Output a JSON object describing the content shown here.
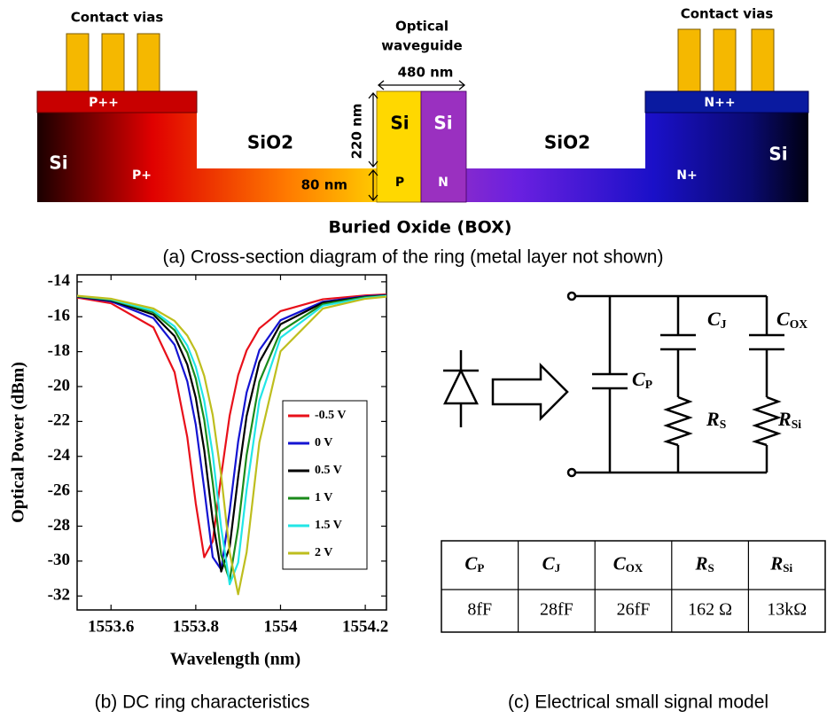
{
  "figure_a": {
    "contact_vias_left": "Contact vias",
    "contact_vias_right": "Contact vias",
    "waveguide_label": [
      "Optical",
      "waveguide"
    ],
    "width": "480 nm",
    "height": "220 nm",
    "slab": "80 nm",
    "sio2_left": "SiO2",
    "sio2_right": "SiO2",
    "si_left": "Si",
    "si_p": "Si",
    "si_n": "Si",
    "si_right": "Si",
    "p_plus_plus": "P++",
    "n_plus_plus": "N++",
    "p_plus": "P+",
    "n_plus": "N+",
    "p": "P",
    "n": "N",
    "box": "Buried Oxide (BOX)",
    "caption": "(a) Cross-section diagram of the ring (metal layer not shown)"
  },
  "chart_data": {
    "type": "line",
    "x_label": "Wavelength (nm)",
    "y_label": "Optical Power (dBm)",
    "x": [
      1553.52,
      1553.6,
      1553.7,
      1553.75,
      1553.78,
      1553.8,
      1553.82,
      1553.84,
      1553.86,
      1553.88,
      1553.9,
      1553.92,
      1553.95,
      1554.0,
      1554.1,
      1554.2,
      1554.25
    ],
    "series": [
      {
        "name": "-0.5 V",
        "color": "#e8101a",
        "values": [
          -14.9,
          -15.23,
          -16.61,
          -19.18,
          -22.9,
          -26.7,
          -29.78,
          -28.87,
          -25.1,
          -21.66,
          -19.35,
          -17.93,
          -16.67,
          -15.68,
          -15.0,
          -14.78,
          -14.72
        ]
      },
      {
        "name": "0 V",
        "color": "#1414d2",
        "values": [
          -14.86,
          -15.12,
          -16.08,
          -17.61,
          -19.7,
          -22.18,
          -25.86,
          -29.77,
          -30.49,
          -27.12,
          -23.16,
          -20.34,
          -17.92,
          -16.2,
          -15.14,
          -14.83,
          -14.76
        ]
      },
      {
        "name": "0.5 V",
        "color": "#000000",
        "values": [
          -14.84,
          -15.07,
          -15.88,
          -17.11,
          -18.74,
          -20.64,
          -23.64,
          -27.67,
          -30.6,
          -29.19,
          -25.18,
          -21.69,
          -18.6,
          -16.43,
          -15.2,
          -14.86,
          -14.78
        ]
      },
      {
        "name": "1 V",
        "color": "#1a8a1a",
        "values": [
          -14.82,
          -15.03,
          -15.75,
          -16.77,
          -18.06,
          -19.54,
          -21.91,
          -25.51,
          -29.65,
          -31.1,
          -28.08,
          -23.92,
          -19.73,
          -16.84,
          -15.28,
          -14.88,
          -14.8
        ]
      },
      {
        "name": "1.5 V",
        "color": "#22e6e6",
        "values": [
          -14.81,
          -15.01,
          -15.66,
          -16.56,
          -17.65,
          -18.87,
          -20.82,
          -23.88,
          -28.1,
          -31.33,
          -30.09,
          -25.91,
          -20.82,
          -17.2,
          -15.37,
          -14.93,
          -14.81
        ]
      },
      {
        "name": "2 V",
        "color": "#bebe1e",
        "values": [
          -14.8,
          -14.97,
          -15.53,
          -16.24,
          -17.08,
          -17.98,
          -19.39,
          -21.63,
          -25.11,
          -29.5,
          -31.9,
          -29.5,
          -23.2,
          -17.98,
          -15.53,
          -14.97,
          -14.85
        ]
      }
    ],
    "xlim": [
      1553.52,
      1554.25
    ],
    "ylim": [
      -32.8,
      -13.6
    ],
    "xticks": [
      1553.6,
      1553.8,
      1554,
      1554.2
    ],
    "yticks": [
      -14,
      -16,
      -18,
      -20,
      -22,
      -24,
      -26,
      -28,
      -30,
      -32
    ],
    "legend": "center right",
    "grid": false
  },
  "caption_b": "(b) DC ring characteristics",
  "circuit": {
    "c_p": {
      "symbol": "C",
      "sub": "P"
    },
    "c_j": {
      "symbol": "C",
      "sub": "J"
    },
    "c_ox": {
      "symbol": "C",
      "sub": "OX"
    },
    "r_s": {
      "symbol": "R",
      "sub": "S"
    },
    "r_si": {
      "symbol": "R",
      "sub": "Si"
    },
    "caption": "(c)  Electrical small signal model"
  },
  "table": {
    "header": [
      {
        "symbol": "C",
        "sub": "P"
      },
      {
        "symbol": "C",
        "sub": "J"
      },
      {
        "symbol": "C",
        "sub": "OX"
      },
      {
        "symbol": "R",
        "sub": "S"
      },
      {
        "symbol": "R",
        "sub": "Si"
      }
    ],
    "rows": [
      [
        "8fF",
        "28fF",
        "26fF",
        "162 Ω",
        "13kΩ"
      ]
    ]
  }
}
